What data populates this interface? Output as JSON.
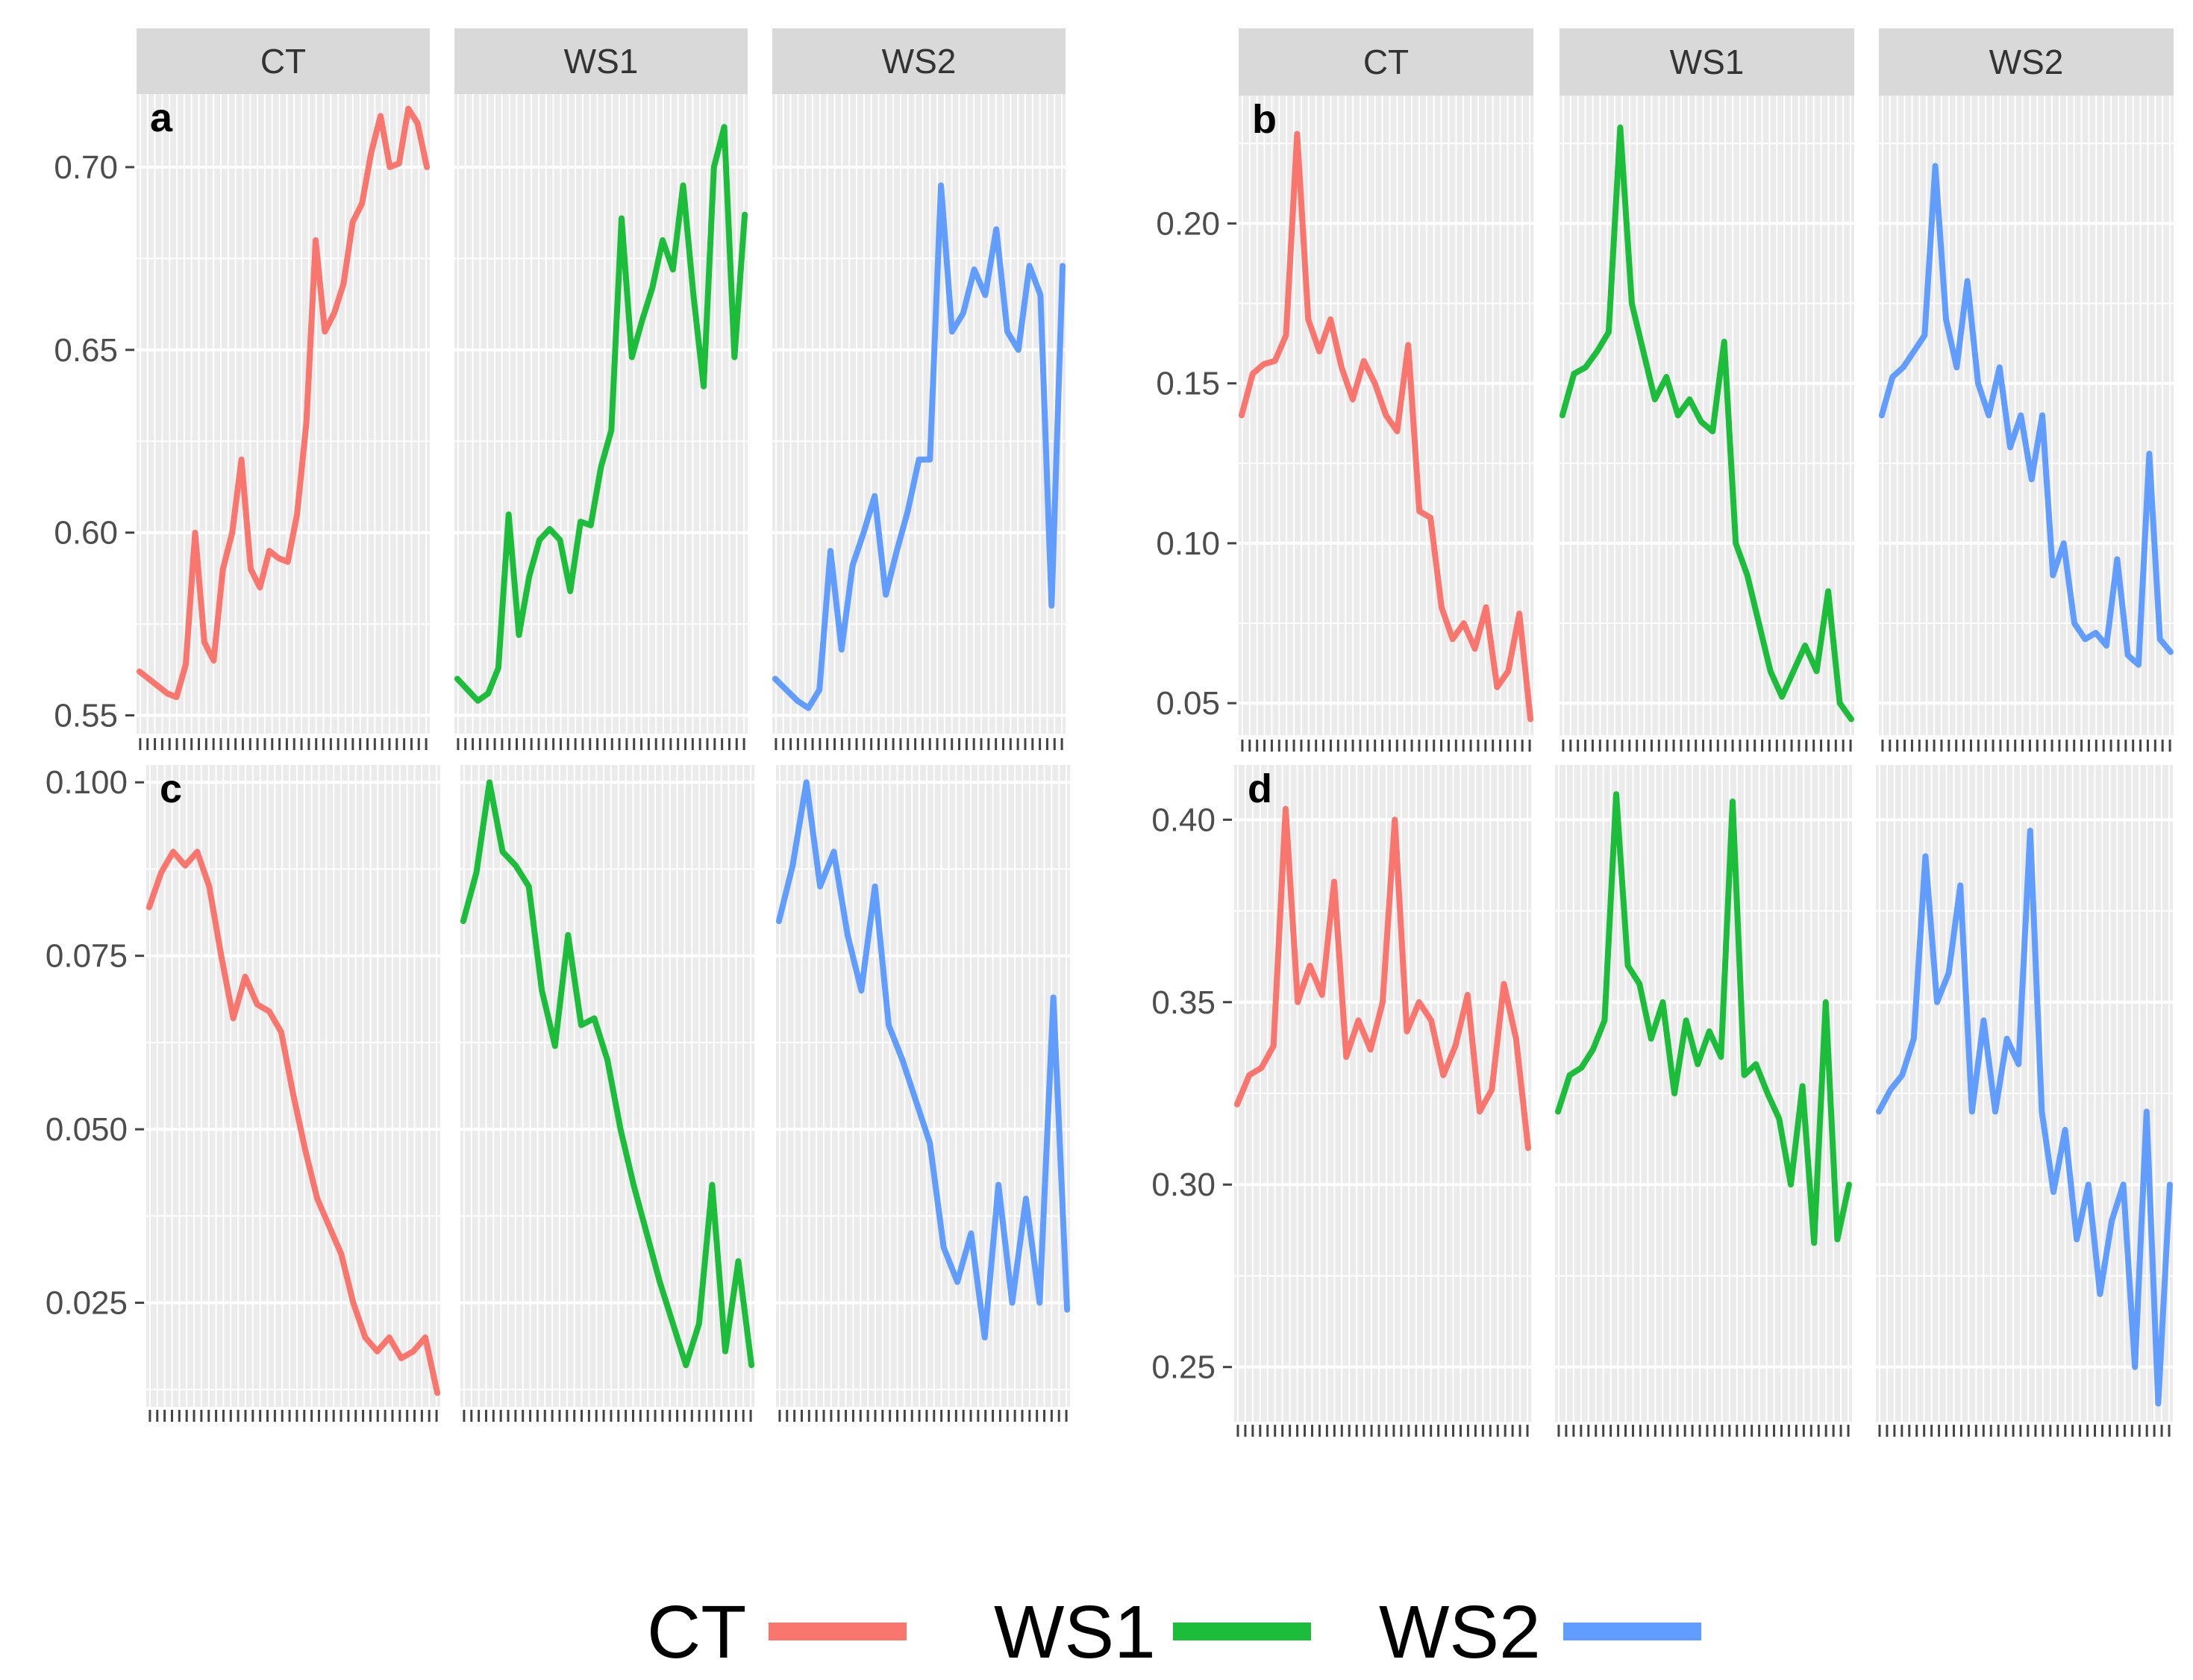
{
  "chart_data": {
    "type": "line",
    "facets": [
      "CT",
      "WS1",
      "WS2"
    ],
    "series_colors": {
      "CT": "#f8766d",
      "WS1": "#1cbd3a",
      "WS2": "#619cff"
    },
    "legend": {
      "position": "bottom",
      "entries": [
        {
          "label": "CT",
          "color": "#f8766d"
        },
        {
          "label": "WS1",
          "color": "#1cbd3a"
        },
        {
          "label": "WS2",
          "color": "#619cff"
        }
      ]
    },
    "panels": [
      {
        "letter": "a",
        "ylim": [
          0.545,
          0.72
        ],
        "yticks": [
          0.55,
          0.6,
          0.65,
          0.7
        ],
        "ytick_labels": [
          "0.55",
          "0.60",
          "0.65",
          "0.70"
        ],
        "series": [
          {
            "name": "CT",
            "values": [
              0.562,
              0.56,
              0.558,
              0.556,
              0.555,
              0.564,
              0.6,
              0.57,
              0.565,
              0.59,
              0.6,
              0.62,
              0.59,
              0.585,
              0.595,
              0.593,
              0.592,
              0.605,
              0.63,
              0.68,
              0.655,
              0.66,
              0.668,
              0.685,
              0.69,
              0.704,
              0.714,
              0.7,
              0.701,
              0.716,
              0.712,
              0.7
            ]
          },
          {
            "name": "WS1",
            "values": [
              0.56,
              0.557,
              0.554,
              0.556,
              0.563,
              0.605,
              0.572,
              0.588,
              0.598,
              0.601,
              0.598,
              0.584,
              0.603,
              0.602,
              0.618,
              0.628,
              0.686,
              0.648,
              0.658,
              0.667,
              0.68,
              0.672,
              0.695,
              0.665,
              0.64,
              0.7,
              0.711,
              0.648,
              0.687
            ]
          },
          {
            "name": "WS2",
            "values": [
              0.56,
              0.557,
              0.554,
              0.552,
              0.557,
              0.595,
              0.568,
              0.591,
              0.6,
              0.61,
              0.583,
              0.595,
              0.606,
              0.62,
              0.62,
              0.695,
              0.655,
              0.66,
              0.672,
              0.665,
              0.683,
              0.655,
              0.65,
              0.673,
              0.665,
              0.58,
              0.673
            ]
          }
        ]
      },
      {
        "letter": "b",
        "ylim": [
          0.04,
          0.24
        ],
        "yticks": [
          0.05,
          0.1,
          0.15,
          0.2
        ],
        "ytick_labels": [
          "0.05",
          "0.10",
          "0.15",
          "0.20"
        ],
        "series": [
          {
            "name": "CT",
            "values": [
              0.14,
              0.153,
              0.156,
              0.157,
              0.165,
              0.228,
              0.17,
              0.16,
              0.17,
              0.155,
              0.145,
              0.157,
              0.15,
              0.14,
              0.135,
              0.162,
              0.11,
              0.108,
              0.08,
              0.07,
              0.075,
              0.067,
              0.08,
              0.055,
              0.06,
              0.078,
              0.045
            ]
          },
          {
            "name": "WS1",
            "values": [
              0.14,
              0.153,
              0.155,
              0.16,
              0.166,
              0.23,
              0.175,
              0.16,
              0.145,
              0.152,
              0.14,
              0.145,
              0.138,
              0.135,
              0.163,
              0.1,
              0.09,
              0.075,
              0.06,
              0.052,
              0.06,
              0.068,
              0.06,
              0.085,
              0.05,
              0.045
            ]
          },
          {
            "name": "WS2",
            "values": [
              0.14,
              0.152,
              0.155,
              0.16,
              0.165,
              0.218,
              0.17,
              0.155,
              0.182,
              0.15,
              0.14,
              0.155,
              0.13,
              0.14,
              0.12,
              0.14,
              0.09,
              0.1,
              0.075,
              0.07,
              0.072,
              0.068,
              0.095,
              0.065,
              0.062,
              0.128,
              0.07,
              0.066
            ]
          }
        ]
      },
      {
        "letter": "c",
        "ylim": [
          0.01,
          0.1025
        ],
        "yticks": [
          0.025,
          0.05,
          0.075,
          0.1
        ],
        "ytick_labels": [
          "0.025",
          "0.050",
          "0.075",
          "0.100"
        ],
        "series": [
          {
            "name": "CT",
            "values": [
              0.082,
              0.087,
              0.09,
              0.088,
              0.09,
              0.085,
              0.075,
              0.066,
              0.072,
              0.068,
              0.067,
              0.064,
              0.055,
              0.047,
              0.04,
              0.036,
              0.032,
              0.025,
              0.02,
              0.018,
              0.02,
              0.017,
              0.018,
              0.02,
              0.012
            ]
          },
          {
            "name": "WS1",
            "values": [
              0.08,
              0.087,
              0.1,
              0.09,
              0.088,
              0.085,
              0.07,
              0.062,
              0.078,
              0.065,
              0.066,
              0.06,
              0.05,
              0.042,
              0.035,
              0.028,
              0.022,
              0.016,
              0.022,
              0.042,
              0.018,
              0.031,
              0.016
            ]
          },
          {
            "name": "WS2",
            "values": [
              0.08,
              0.088,
              0.1,
              0.085,
              0.09,
              0.078,
              0.07,
              0.085,
              0.065,
              0.06,
              0.054,
              0.048,
              0.033,
              0.028,
              0.035,
              0.02,
              0.042,
              0.025,
              0.04,
              0.025,
              0.069,
              0.024
            ]
          }
        ]
      },
      {
        "letter": "d",
        "ylim": [
          0.235,
          0.415
        ],
        "yticks": [
          0.25,
          0.3,
          0.35,
          0.4
        ],
        "ytick_labels": [
          "0.25",
          "0.30",
          "0.35",
          "0.40"
        ],
        "series": [
          {
            "name": "CT",
            "values": [
              0.322,
              0.33,
              0.332,
              0.338,
              0.403,
              0.35,
              0.36,
              0.352,
              0.383,
              0.335,
              0.345,
              0.337,
              0.35,
              0.4,
              0.342,
              0.35,
              0.345,
              0.33,
              0.338,
              0.352,
              0.32,
              0.326,
              0.355,
              0.34,
              0.31
            ]
          },
          {
            "name": "WS1",
            "values": [
              0.32,
              0.33,
              0.332,
              0.337,
              0.345,
              0.407,
              0.36,
              0.355,
              0.34,
              0.35,
              0.325,
              0.345,
              0.333,
              0.342,
              0.335,
              0.405,
              0.33,
              0.333,
              0.325,
              0.318,
              0.3,
              0.327,
              0.284,
              0.35,
              0.285,
              0.3
            ]
          },
          {
            "name": "WS2",
            "values": [
              0.32,
              0.326,
              0.33,
              0.34,
              0.39,
              0.35,
              0.358,
              0.382,
              0.32,
              0.345,
              0.32,
              0.34,
              0.333,
              0.397,
              0.32,
              0.298,
              0.315,
              0.285,
              0.3,
              0.27,
              0.29,
              0.3,
              0.25,
              0.32,
              0.24,
              0.3
            ]
          }
        ]
      }
    ]
  }
}
